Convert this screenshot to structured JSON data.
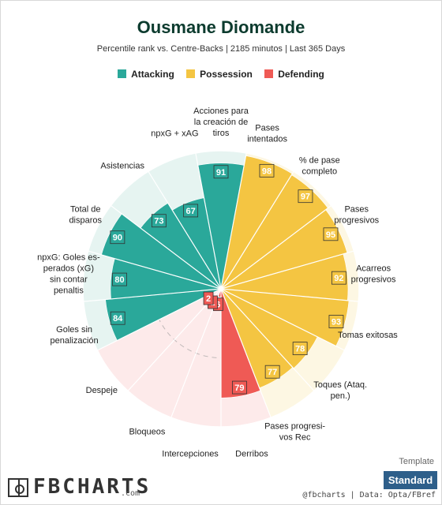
{
  "header": {
    "title": "Ousmane Diomande",
    "subtitle": "Percentile rank vs. Centre-Backs | 2185 minutos | Last 365 Days"
  },
  "legend": [
    {
      "label": "Attacking",
      "color": "#2aa89a"
    },
    {
      "label": "Possession",
      "color": "#f4c542"
    },
    {
      "label": "Defending",
      "color": "#ef5a55"
    }
  ],
  "chart_data": {
    "type": "polar-bar",
    "title": "Ousmane Diomande",
    "subtitle": "Percentile rank vs. Centre-Backs | 2185 minutos | Last 365 Days",
    "rlim": [
      0,
      100
    ],
    "categories": [
      {
        "label": "Acciones para\nla creación de\ntiros",
        "value": 91,
        "group": "Attacking"
      },
      {
        "label": "Pases\nintentados",
        "value": 98,
        "group": "Possession"
      },
      {
        "label": "% de pase\ncompleto",
        "value": 97,
        "group": "Possession"
      },
      {
        "label": "Pases\nprogresivos",
        "value": 95,
        "group": "Possession"
      },
      {
        "label": "Acarreos\nprogresivos",
        "value": 92,
        "group": "Possession"
      },
      {
        "label": "Tomas exitosas",
        "value": 93,
        "group": "Possession"
      },
      {
        "label": "Toques (Ataq.\npen.)",
        "value": 78,
        "group": "Possession"
      },
      {
        "label": "Pases progresi-\nvos Rec",
        "value": 77,
        "group": "Possession"
      },
      {
        "label": "Derribos",
        "value": 79,
        "group": "Defending"
      },
      {
        "label": "Intercepciones",
        "value": 6,
        "group": "Defending"
      },
      {
        "label": "Bloqueos",
        "value": 1,
        "group": "Defending"
      },
      {
        "label": "Despeje",
        "value": 2,
        "group": "Defending"
      },
      {
        "label": "Goles sin\npenalización",
        "value": 84,
        "group": "Attacking"
      },
      {
        "label": "npxG: Goles es-\nperados (xG)\nsin contar\npenaltis",
        "value": 80,
        "group": "Attacking"
      },
      {
        "label": "Total de\ndisparos",
        "value": 90,
        "group": "Attacking"
      },
      {
        "label": "Asistencias",
        "value": 73,
        "group": "Attacking"
      },
      {
        "label": "npxG + xAG",
        "value": 67,
        "group": "Attacking"
      }
    ],
    "group_colors": {
      "Attacking": "#2aa89a",
      "Possession": "#f4c542",
      "Defending": "#ef5a55"
    },
    "background_colors": {
      "Attacking": "#e6f4f1",
      "Possession": "#fdf7e3",
      "Defending": "#fdeaea"
    },
    "grid_rings": [
      25,
      50,
      75,
      100
    ],
    "legend_position": "top-center"
  },
  "footer": {
    "template_label": "Template",
    "template_button": "Standard",
    "brand_name": "FBCHARTS",
    "brand_suffix": ".com",
    "credit": "@fbcharts | Data: Opta/FBref"
  }
}
